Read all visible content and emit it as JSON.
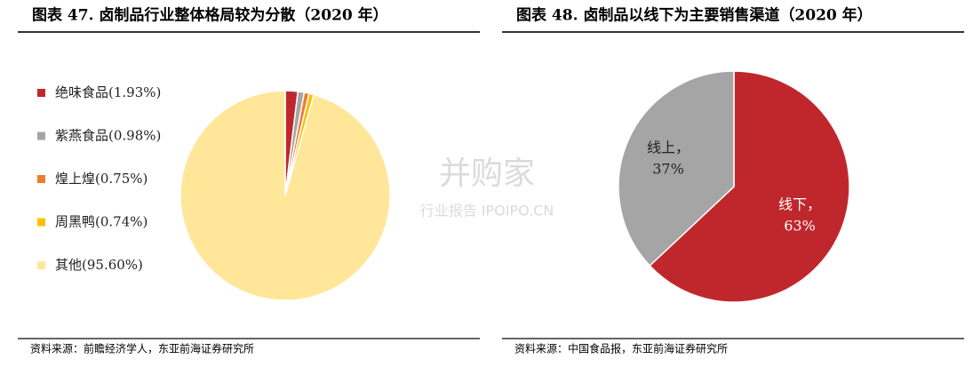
{
  "chart_data": [
    {
      "type": "pie",
      "title": "图表 47. 卤制品行业整体格局较为分散（2020 年）",
      "categories": [
        "绝味食品(1.93%)",
        "紫燕食品(0.98%)",
        "煌上煌(0.75%)",
        "周黑鸭(0.74%)",
        "其他(95.60%)"
      ],
      "values": [
        1.93,
        0.98,
        0.75,
        0.74,
        95.6
      ],
      "colors": [
        "#c0272d",
        "#a5a5a5",
        "#ed7d31",
        "#ffc000",
        "#ffe699"
      ],
      "legend": "left",
      "source": "资料来源：前瞻经济学人，东亚前海证券研究所"
    },
    {
      "type": "pie",
      "title": "图表 48. 卤制品以线下为主要销售渠道（2020 年）",
      "categories": [
        "线下，",
        "线上，"
      ],
      "values": [
        63,
        37
      ],
      "value_labels": [
        "63%",
        "37%"
      ],
      "colors": [
        "#c0272d",
        "#a5a5a5"
      ],
      "source": "资料来源：中国食品报，东亚前海证券研究所"
    }
  ],
  "watermark": [
    "并购家",
    "行业报告 IPOIPO.CN"
  ]
}
